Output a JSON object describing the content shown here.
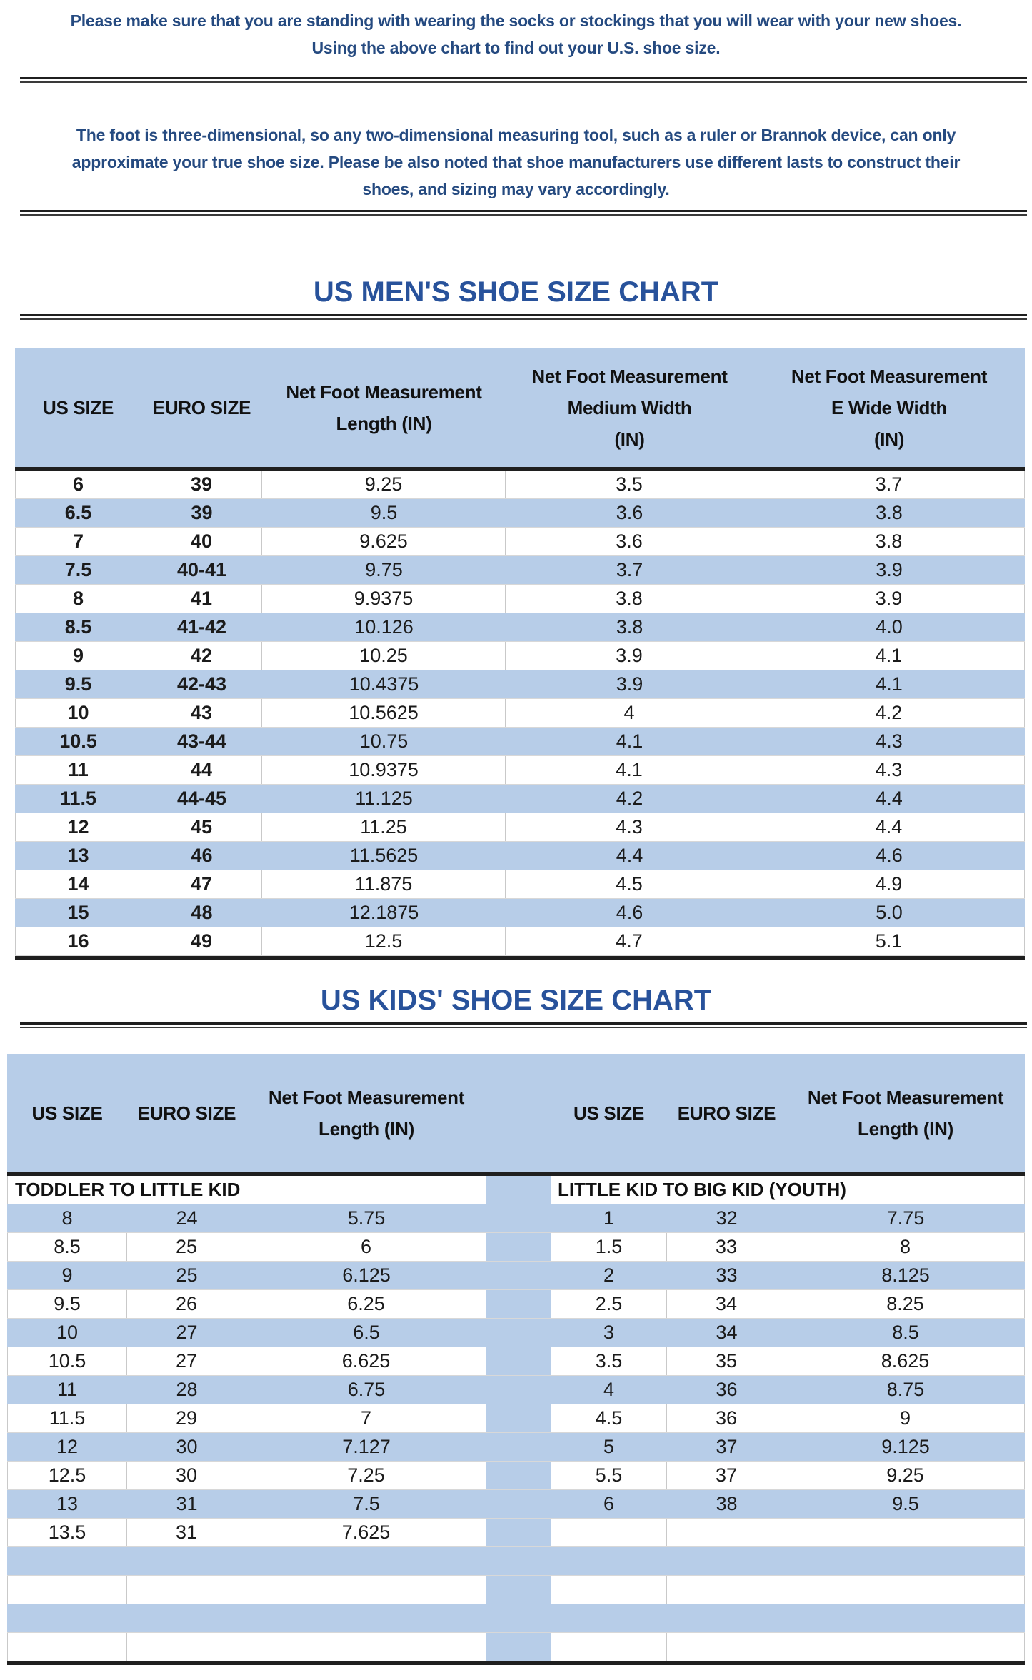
{
  "intro": {
    "primary_lines": [
      "Please make sure that you are standing with wearing the socks or stockings that you will wear with your new shoes.",
      "Using the above chart to find out your U.S. shoe size."
    ],
    "secondary_lines": [
      "The foot is three-dimensional, so any two-dimensional measuring tool, such as a ruler or Brannok device, can only",
      "approximate your true shoe size. Please be also noted that shoe manufacturers use different lasts to construct their",
      "shoes, and sizing may vary accordingly."
    ]
  },
  "mens_chart": {
    "title": "US MEN'S SHOE SIZE CHART",
    "headers": [
      {
        "lines": [
          "US SIZE"
        ]
      },
      {
        "lines": [
          "EURO SIZE"
        ]
      },
      {
        "lines": [
          "Net Foot Measurement",
          "Length (IN)"
        ]
      },
      {
        "lines": [
          "Net Foot Measurement",
          "Medium Width",
          "（IN)"
        ]
      },
      {
        "lines": [
          "Net Foot Measurement",
          "E Wide Width",
          "（IN）"
        ]
      }
    ],
    "rows": [
      [
        "6",
        "39",
        "9.25",
        "3.5",
        "3.7"
      ],
      [
        "6.5",
        "39",
        "9.5",
        "3.6",
        "3.8"
      ],
      [
        "7",
        "40",
        "9.625",
        "3.6",
        "3.8"
      ],
      [
        "7.5",
        "40-41",
        "9.75",
        "3.7",
        "3.9"
      ],
      [
        "8",
        "41",
        "9.9375",
        "3.8",
        "3.9"
      ],
      [
        "8.5",
        "41-42",
        "10.126",
        "3.8",
        "4.0"
      ],
      [
        "9",
        "42",
        "10.25",
        "3.9",
        "4.1"
      ],
      [
        "9.5",
        "42-43",
        "10.4375",
        "3.9",
        "4.1"
      ],
      [
        "10",
        "43",
        "10.5625",
        "4",
        "4.2"
      ],
      [
        "10.5",
        "43-44",
        "10.75",
        "4.1",
        "4.3"
      ],
      [
        "11",
        "44",
        "10.9375",
        "4.1",
        "4.3"
      ],
      [
        "11.5",
        "44-45",
        "11.125",
        "4.2",
        "4.4"
      ],
      [
        "12",
        "45",
        "11.25",
        "4.3",
        "4.4"
      ],
      [
        "13",
        "46",
        "11.5625",
        "4.4",
        "4.6"
      ],
      [
        "14",
        "47",
        "11.875",
        "4.5",
        "4.9"
      ],
      [
        "15",
        "48",
        "12.1875",
        "4.6",
        "5.0"
      ],
      [
        "16",
        "49",
        "12.5",
        "4.7",
        "5.1"
      ]
    ]
  },
  "kids_chart": {
    "title": "US KIDS' SHOE SIZE CHART",
    "left_headers": [
      {
        "lines": [
          "US SIZE"
        ]
      },
      {
        "lines": [
          "EURO SIZE"
        ]
      },
      {
        "lines": [
          "Net Foot Measurement",
          "Length (IN)"
        ]
      }
    ],
    "right_headers": [
      {
        "lines": [
          "US SIZE"
        ]
      },
      {
        "lines": [
          "EURO SIZE"
        ]
      },
      {
        "lines": [
          "Net Foot Measurement",
          "Length (IN)"
        ]
      }
    ],
    "left_section_label": "TODDLER TO LITTLE KID",
    "right_section_label": "LITTLE KID TO BIG KID (YOUTH)",
    "left_rows": [
      [
        "8",
        "24",
        "5.75"
      ],
      [
        "8.5",
        "25",
        "6"
      ],
      [
        "9",
        "25",
        "6.125"
      ],
      [
        "9.5",
        "26",
        "6.25"
      ],
      [
        "10",
        "27",
        "6.5"
      ],
      [
        "10.5",
        "27",
        "6.625"
      ],
      [
        "11",
        "28",
        "6.75"
      ],
      [
        "11.5",
        "29",
        "7"
      ],
      [
        "12",
        "30",
        "7.127"
      ],
      [
        "12.5",
        "30",
        "7.25"
      ],
      [
        "13",
        "31",
        "7.5"
      ],
      [
        "13.5",
        "31",
        "7.625"
      ]
    ],
    "right_rows": [
      [
        "1",
        "32",
        "7.75"
      ],
      [
        "1.5",
        "33",
        "8"
      ],
      [
        "2",
        "33",
        "8.125"
      ],
      [
        "2.5",
        "34",
        "8.25"
      ],
      [
        "3",
        "34",
        "8.5"
      ],
      [
        "3.5",
        "35",
        "8.625"
      ],
      [
        "4",
        "36",
        "8.75"
      ],
      [
        "4.5",
        "36",
        "9"
      ],
      [
        "5",
        "37",
        "9.125"
      ],
      [
        "5.5",
        "37",
        "9.25"
      ],
      [
        "6",
        "38",
        "9.5"
      ]
    ],
    "total_body_bands": 16
  },
  "colors": {
    "band_blue": "#b7cde8",
    "title_blue": "#28529b",
    "paragraph_navy": "#254a80",
    "rule_dark": "#1f1f1f",
    "cell_border_gray": "#c9c9c9"
  }
}
